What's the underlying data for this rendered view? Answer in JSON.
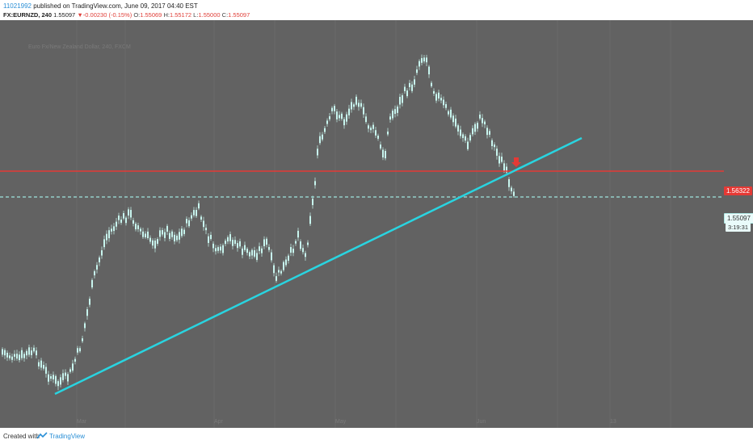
{
  "header": {
    "user": "11021992",
    "published_text": "published on TradingView.com, June 09, 2017 04:40 EST",
    "symbol": "FX:EURNZD, 240",
    "last_price": "1.55097",
    "change": "-0.00230 (-0.15%)",
    "open_label": "O:",
    "open": "1.55069",
    "high_label": "H:",
    "high": "1.55172",
    "low_label": "L:",
    "low": "1.55000",
    "close_label": "C:",
    "close": "1.55097"
  },
  "chart": {
    "watermark": "Euro Fx/New Zealand Dollar, 240, FXCM",
    "resistance_price": "1.56322",
    "current_price": "1.55097",
    "timer": "3:19:31",
    "colors": {
      "background": "#626262",
      "candles": "#c8f5ee",
      "trendline": "#29d4e0",
      "resistance": "#e53935",
      "price_line": "#9fe6e0"
    },
    "x_labels": [
      "Mar",
      "Apr",
      "May",
      "Jun",
      "13"
    ]
  },
  "footer": {
    "created_with": "Created with",
    "brand": "TradingView"
  }
}
